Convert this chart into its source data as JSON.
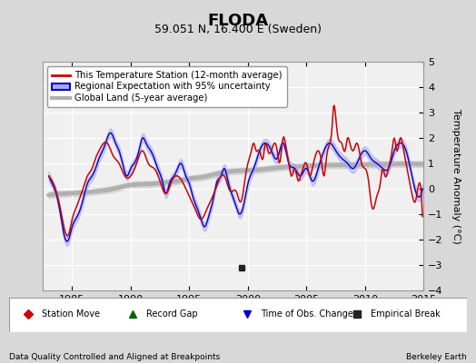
{
  "title": "FLODA",
  "subtitle": "59.051 N, 16.400 E (Sweden)",
  "ylabel": "Temperature Anomaly (°C)",
  "footer_left": "Data Quality Controlled and Aligned at Breakpoints",
  "footer_right": "Berkeley Earth",
  "xlim": [
    1982.5,
    2015
  ],
  "ylim": [
    -4,
    5
  ],
  "yticks": [
    -4,
    -3,
    -2,
    -1,
    0,
    1,
    2,
    3,
    4,
    5
  ],
  "xticks": [
    1985,
    1990,
    1995,
    2000,
    2005,
    2010,
    2015
  ],
  "bg_color": "#d8d8d8",
  "plot_bg_color": "#f0f0f0",
  "red_line_color": "#cc0000",
  "blue_line_color": "#0000cc",
  "blue_fill_color": "#aaaaee",
  "gray_line_color": "#b0b0b0",
  "gray_fill_color": "#cccccc",
  "empirical_break_x": 1999.5,
  "empirical_break_y": -3.1,
  "legend_entries": [
    "This Temperature Station (12-month average)",
    "Regional Expectation with 95% uncertainty",
    "Global Land (5-year average)"
  ],
  "marker_legend": [
    {
      "label": "Station Move",
      "color": "#cc0000",
      "marker": "D"
    },
    {
      "label": "Record Gap",
      "color": "#006600",
      "marker": "^"
    },
    {
      "label": "Time of Obs. Change",
      "color": "#0000cc",
      "marker": "v"
    },
    {
      "label": "Empirical Break",
      "color": "#222222",
      "marker": "s"
    }
  ]
}
